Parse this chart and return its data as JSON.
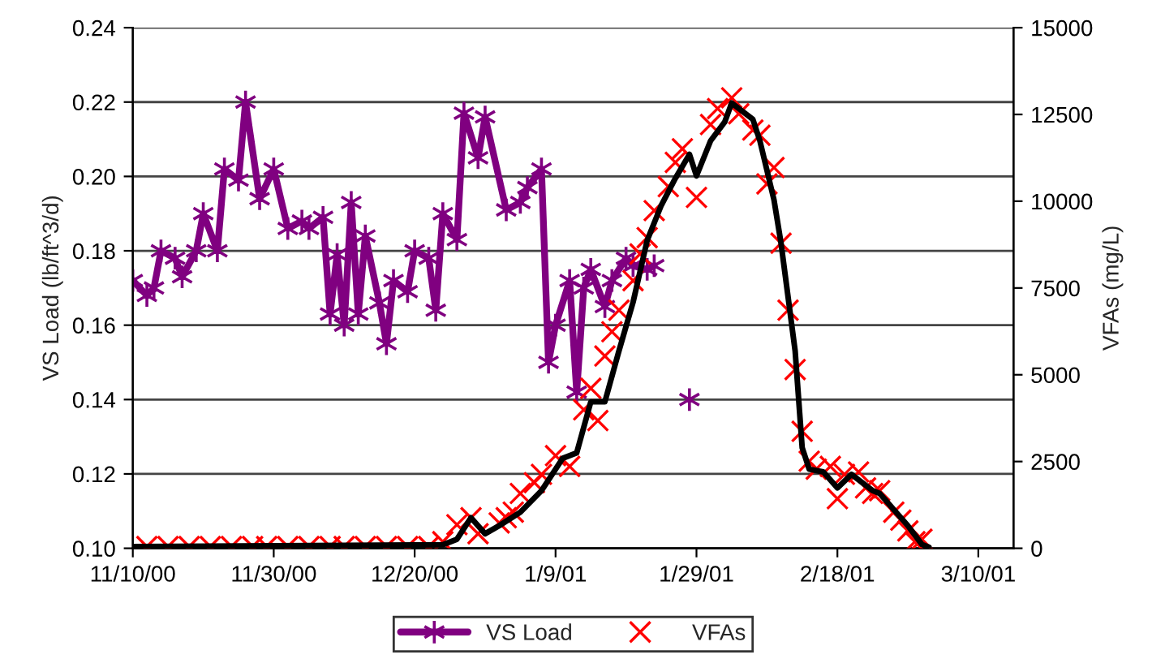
{
  "chart_data": {
    "type": "line",
    "ylabel": "VS Load (lb/ft^3/d)",
    "y2label": "VFAs (mg/L)",
    "xlim": [
      "2000-11-10",
      "2001-03-15"
    ],
    "xticks": [
      {
        "value": "2000-11-10",
        "label": "11/10/00"
      },
      {
        "value": "2000-11-30",
        "label": "11/30/00"
      },
      {
        "value": "2000-12-20",
        "label": "12/20/00"
      },
      {
        "value": "2001-01-09",
        "label": "1/9/01"
      },
      {
        "value": "2001-01-29",
        "label": "1/29/01"
      },
      {
        "value": "2001-02-18",
        "label": "2/18/01"
      },
      {
        "value": "2001-03-10",
        "label": "3/10/01"
      }
    ],
    "ylim": [
      0.1,
      0.24
    ],
    "yticks": [
      {
        "value": 0.1,
        "label": "0.10"
      },
      {
        "value": 0.12,
        "label": "0.12"
      },
      {
        "value": 0.14,
        "label": "0.14"
      },
      {
        "value": 0.16,
        "label": "0.16"
      },
      {
        "value": 0.18,
        "label": "0.18"
      },
      {
        "value": 0.2,
        "label": "0.20"
      },
      {
        "value": 0.22,
        "label": "0.22"
      },
      {
        "value": 0.24,
        "label": "0.24"
      }
    ],
    "y2lim": [
      0,
      15000
    ],
    "y2ticks": [
      0,
      2500,
      5000,
      7500,
      10000,
      12500,
      15000
    ],
    "grid": "y",
    "legend": "bottom",
    "series": [
      {
        "name": "VS Load",
        "color": "#800080",
        "marker": "cross",
        "x": [
          "2000-11-10",
          "2000-11-12",
          "2000-11-13",
          "2000-11-14",
          "2000-11-16",
          "2000-11-17",
          "2000-11-19",
          "2000-11-20",
          "2000-11-22",
          "2000-11-23",
          "2000-11-25",
          "2000-11-26",
          "2000-11-28",
          "2000-11-30",
          "2000-12-02",
          "2000-12-04",
          "2000-12-05",
          "2000-12-07",
          "2000-12-08",
          "2000-12-09",
          "2000-12-10",
          "2000-12-11",
          "2000-12-12",
          "2000-12-13",
          "2000-12-15",
          "2000-12-16",
          "2000-12-17",
          "2000-12-19",
          "2000-12-20",
          "2000-12-22",
          "2000-12-23",
          "2000-12-24",
          "2000-12-26",
          "2000-12-27",
          "2000-12-29",
          "2000-12-30",
          "2001-01-02",
          "2001-01-04",
          "2001-01-05",
          "2001-01-07",
          "2001-01-08",
          "2001-01-09",
          "2001-01-11",
          "2001-01-12",
          "2001-01-13",
          "2001-01-14",
          "2001-01-16",
          "2001-01-17",
          "2001-01-19",
          "2001-01-20",
          "2001-01-22",
          "2001-01-23",
          "2001-01-24",
          "2001-01-28"
        ],
        "values": [
          0.172,
          0.168,
          0.17,
          0.18,
          0.178,
          0.173,
          0.18,
          0.19,
          0.18,
          0.202,
          0.199,
          0.22,
          0.194,
          0.202,
          0.186,
          0.188,
          0.186,
          0.189,
          0.163,
          0.179,
          0.16,
          0.193,
          0.163,
          0.184,
          0.166,
          0.155,
          0.172,
          0.169,
          0.18,
          0.178,
          0.164,
          0.19,
          0.183,
          0.217,
          0.205,
          0.216,
          0.191,
          0.193,
          0.197,
          0.202,
          0.15,
          0.16,
          0.172,
          0.142,
          0.17,
          0.175,
          0.165,
          0.172,
          0.178,
          0.176,
          0.175,
          0.176,
          null,
          0.14
        ]
      },
      {
        "name": "VFAs",
        "type": "scatter",
        "axis": "y2",
        "color": "#ff0000",
        "marker": "cross",
        "x": [
          "2000-11-12",
          "2000-11-15",
          "2000-11-18",
          "2000-11-21",
          "2000-11-24",
          "2000-11-27",
          "2000-11-29",
          "2000-12-02",
          "2000-12-05",
          "2000-12-08",
          "2000-12-10",
          "2000-12-13",
          "2000-12-16",
          "2000-12-19",
          "2000-12-22",
          "2000-12-24",
          "2000-12-26",
          "2000-12-28",
          "2000-12-29",
          "2001-01-01",
          "2001-01-02",
          "2001-01-03",
          "2001-01-04",
          "2001-01-06",
          "2001-01-07",
          "2001-01-09",
          "2001-01-11",
          "2001-01-13",
          "2001-01-14",
          "2001-01-15",
          "2001-01-16",
          "2001-01-17",
          "2001-01-18",
          "2001-01-20",
          "2001-01-21",
          "2001-01-22",
          "2001-01-23",
          "2001-01-25",
          "2001-01-26",
          "2001-01-27",
          "2001-01-29",
          "2001-01-31",
          "2001-02-01",
          "2001-02-03",
          "2001-02-04",
          "2001-02-06",
          "2001-02-07",
          "2001-02-08",
          "2001-02-09",
          "2001-02-10",
          "2001-02-11",
          "2001-02-12",
          "2001-02-13",
          "2001-02-14",
          "2001-02-15",
          "2001-02-17",
          "2001-02-18",
          "2001-02-19",
          "2001-02-21",
          "2001-02-22",
          "2001-02-23",
          "2001-02-24",
          "2001-02-26",
          "2001-02-27",
          "2001-02-28",
          "2001-03-01",
          "2001-03-02"
        ],
        "values": [
          50,
          50,
          50,
          50,
          50,
          50,
          50,
          50,
          50,
          50,
          50,
          50,
          50,
          50,
          50,
          190,
          680,
          880,
          420,
          730,
          880,
          1040,
          1580,
          1890,
          2130,
          2670,
          2360,
          3990,
          4610,
          3680,
          5540,
          6240,
          6860,
          7710,
          8480,
          8950,
          9730,
          10420,
          11120,
          11510,
          10110,
          12210,
          12670,
          12980,
          12520,
          12050,
          11900,
          10500,
          10970,
          8790,
          6860,
          5150,
          3370,
          2510,
          2280,
          2360,
          1430,
          2130,
          2200,
          1740,
          1580,
          1660,
          1040,
          810,
          500,
          190,
          260
        ]
      },
      {
        "type": "line",
        "axis": "y2",
        "color": "#000000",
        "marker": "none",
        "x": [
          "2000-11-10",
          "2000-12-24",
          "2000-12-26",
          "2000-12-28",
          "2000-12-30",
          "2001-01-01",
          "2001-01-04",
          "2001-01-07",
          "2001-01-10",
          "2001-01-12",
          "2001-01-14",
          "2001-01-16",
          "2001-01-18",
          "2001-01-20",
          "2001-01-22",
          "2001-01-24",
          "2001-01-26",
          "2001-01-28",
          "2001-01-29",
          "2001-01-31",
          "2001-02-02",
          "2001-02-03",
          "2001-02-06",
          "2001-02-07",
          "2001-02-09",
          "2001-02-10",
          "2001-02-12",
          "2001-02-13",
          "2001-02-14",
          "2001-02-16",
          "2001-02-18",
          "2001-02-20",
          "2001-02-23",
          "2001-02-24",
          "2001-02-28",
          "2001-03-02",
          "2001-03-03"
        ],
        "values": [
          50,
          100,
          260,
          880,
          420,
          650,
          1040,
          1660,
          2590,
          2750,
          4220,
          4220,
          5690,
          7090,
          8870,
          9880,
          10660,
          11350,
          10730,
          11740,
          12280,
          12830,
          12360,
          11740,
          10040,
          8790,
          5690,
          2900,
          2280,
          2200,
          1740,
          2130,
          1660,
          1580,
          650,
          110,
          30
        ]
      }
    ]
  }
}
